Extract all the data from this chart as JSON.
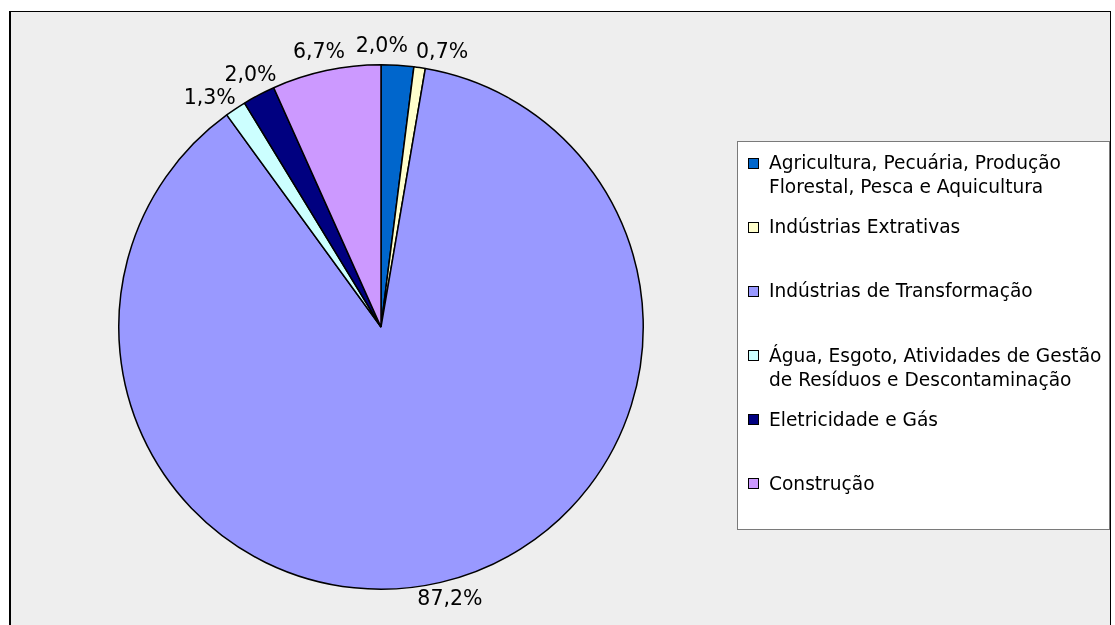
{
  "chart_data": {
    "type": "pie",
    "categories": [
      "Agricultura, Pecuária, Produção Florestal, Pesca e Aquicultura",
      "Indústrias Extrativas",
      "Indústrias de Transformação",
      "Água, Esgoto, Atividades de Gestão de Resíduos e Descontaminação",
      "Eletricidade e Gás",
      "Construção"
    ],
    "values": [
      2.0,
      0.7,
      87.2,
      1.3,
      2.0,
      6.7
    ],
    "colors": [
      "#0066cc",
      "#ffffcc",
      "#9999ff",
      "#ccffff",
      "#000080",
      "#cc99ff"
    ],
    "value_labels": [
      "2,0%",
      "0,7%",
      "87,2%",
      "1,3%",
      "2,0%",
      "6,7%"
    ],
    "legend": "right"
  }
}
